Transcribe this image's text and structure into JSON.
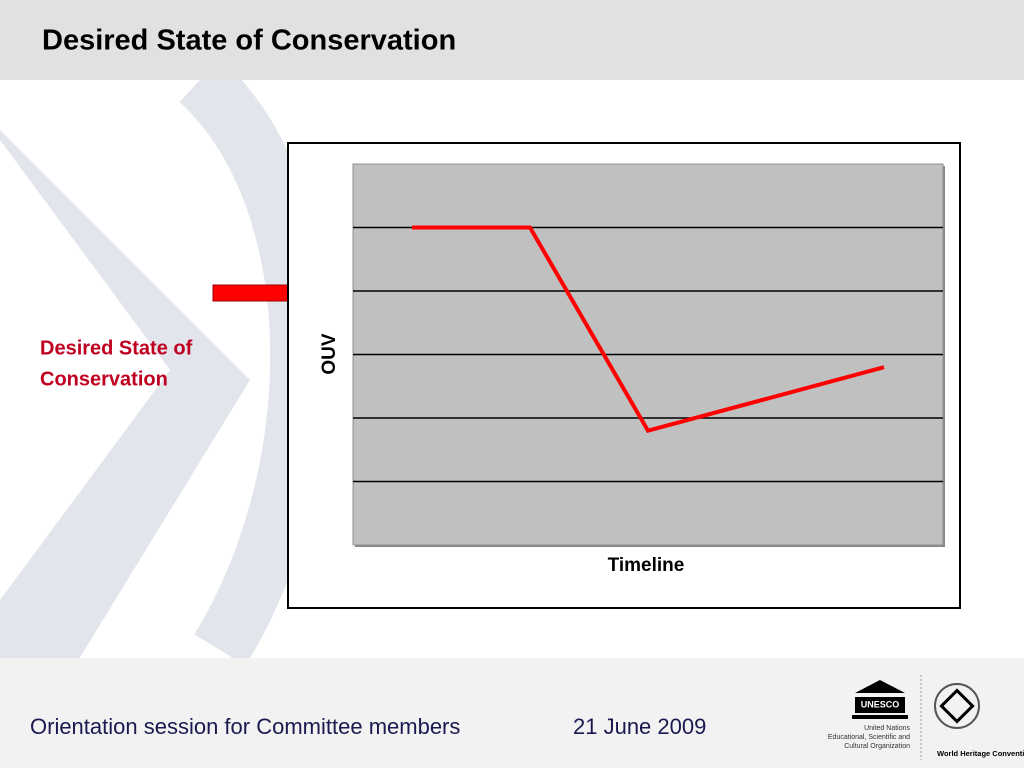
{
  "header": {
    "title": "Desired State of Conservation"
  },
  "callout": {
    "lines": [
      "Desired State of",
      "Conservation"
    ]
  },
  "chart_data": {
    "type": "line",
    "x_label": "Timeline",
    "y_label": "OUV",
    "x": [
      1,
      3,
      5,
      9
    ],
    "series": [
      {
        "color": "#ff0000",
        "values": [
          5,
          5,
          1.8,
          2.8
        ]
      }
    ],
    "xlim": [
      0,
      10
    ],
    "ylim": [
      0,
      6
    ],
    "yticks": [
      1,
      2,
      3,
      4,
      5
    ],
    "grid": true
  },
  "footer": {
    "session": "Orientation session for Committee members",
    "date": "21 June 2009",
    "logo_unesco": "UNESCO",
    "logo_org_lines": [
      "United Nations",
      "Educational, Scientific and",
      "Cultural Organization"
    ],
    "logo_whc": "World Heritage Convention"
  }
}
